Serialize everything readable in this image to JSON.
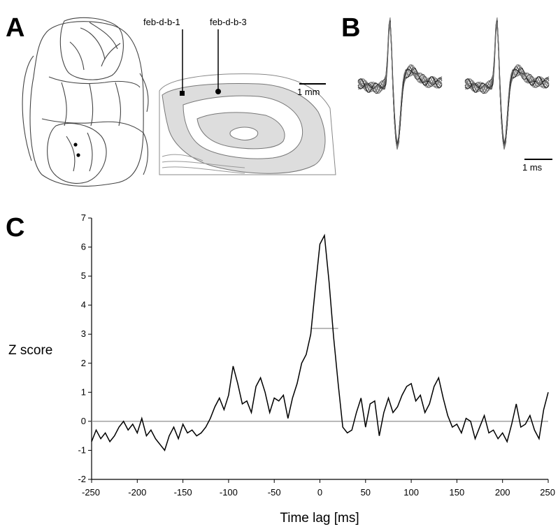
{
  "panels": {
    "a_label": "A",
    "b_label": "B",
    "c_label": "C"
  },
  "panel_a": {
    "recording_labels": [
      "feb-d-b-1",
      "feb-d-b-3"
    ],
    "scale_bar_label": "1 mm"
  },
  "panel_b": {
    "scale_bar_label": "1 ms"
  },
  "chart_data": {
    "type": "line",
    "xlabel": "Time lag [ms]",
    "ylabel": "Z score",
    "xlim": [
      -250,
      250
    ],
    "ylim": [
      -2,
      7
    ],
    "xticks": [
      -250,
      -200,
      -150,
      -100,
      -50,
      0,
      50,
      100,
      150,
      200,
      250
    ],
    "yticks": [
      -2,
      -1,
      0,
      1,
      2,
      3,
      4,
      5,
      6,
      7
    ],
    "xtick_labels": [
      "-250",
      "-200",
      "-150",
      "-100",
      "-50",
      "0",
      "50",
      "100",
      "150",
      "200",
      "250"
    ],
    "ytick_labels": [
      "-2",
      "-1",
      "0",
      "1",
      "2",
      "3",
      "4",
      "5",
      "6",
      "7"
    ],
    "reference_line_y": 0,
    "threshold_marker": {
      "y": 3.2,
      "x_range": [
        -10,
        20
      ]
    },
    "colors": {
      "trace": "#000000",
      "reference": "#999999",
      "threshold": "#aaaaaa"
    },
    "x": [
      -250,
      -245,
      -240,
      -235,
      -230,
      -225,
      -220,
      -215,
      -210,
      -205,
      -200,
      -195,
      -190,
      -185,
      -180,
      -175,
      -170,
      -165,
      -160,
      -155,
      -150,
      -145,
      -140,
      -135,
      -130,
      -125,
      -120,
      -115,
      -110,
      -105,
      -100,
      -95,
      -90,
      -85,
      -80,
      -75,
      -70,
      -65,
      -60,
      -55,
      -50,
      -45,
      -40,
      -35,
      -30,
      -25,
      -20,
      -15,
      -10,
      -5,
      0,
      5,
      10,
      15,
      20,
      25,
      30,
      35,
      40,
      45,
      50,
      55,
      60,
      65,
      70,
      75,
      80,
      85,
      90,
      95,
      100,
      105,
      110,
      115,
      120,
      125,
      130,
      135,
      140,
      145,
      150,
      155,
      160,
      165,
      170,
      175,
      180,
      185,
      190,
      195,
      200,
      205,
      210,
      215,
      220,
      225,
      230,
      235,
      240,
      245,
      250
    ],
    "y": [
      -0.7,
      -0.3,
      -0.6,
      -0.4,
      -0.7,
      -0.5,
      -0.2,
      0.0,
      -0.3,
      -0.1,
      -0.4,
      0.1,
      -0.5,
      -0.3,
      -0.6,
      -0.8,
      -1.0,
      -0.5,
      -0.2,
      -0.6,
      -0.1,
      -0.4,
      -0.3,
      -0.5,
      -0.4,
      -0.2,
      0.1,
      0.5,
      0.8,
      0.4,
      0.9,
      1.9,
      1.3,
      0.6,
      0.7,
      0.3,
      1.2,
      1.5,
      1.0,
      0.3,
      0.8,
      0.7,
      0.9,
      0.1,
      0.8,
      1.3,
      2.0,
      2.3,
      3.0,
      4.6,
      6.1,
      6.4,
      4.8,
      2.9,
      1.3,
      -0.2,
      -0.4,
      -0.3,
      0.3,
      0.8,
      -0.2,
      0.6,
      0.7,
      -0.5,
      0.3,
      0.8,
      0.3,
      0.5,
      0.9,
      1.2,
      1.3,
      0.7,
      0.9,
      0.3,
      0.6,
      1.2,
      1.5,
      0.8,
      0.2,
      -0.2,
      -0.1,
      -0.4,
      0.1,
      0.0,
      -0.6,
      -0.2,
      0.2,
      -0.4,
      -0.3,
      -0.6,
      -0.4,
      -0.7,
      -0.1,
      0.6,
      -0.2,
      -0.1,
      0.2,
      -0.3,
      -0.6,
      0.4,
      1.0
    ]
  }
}
